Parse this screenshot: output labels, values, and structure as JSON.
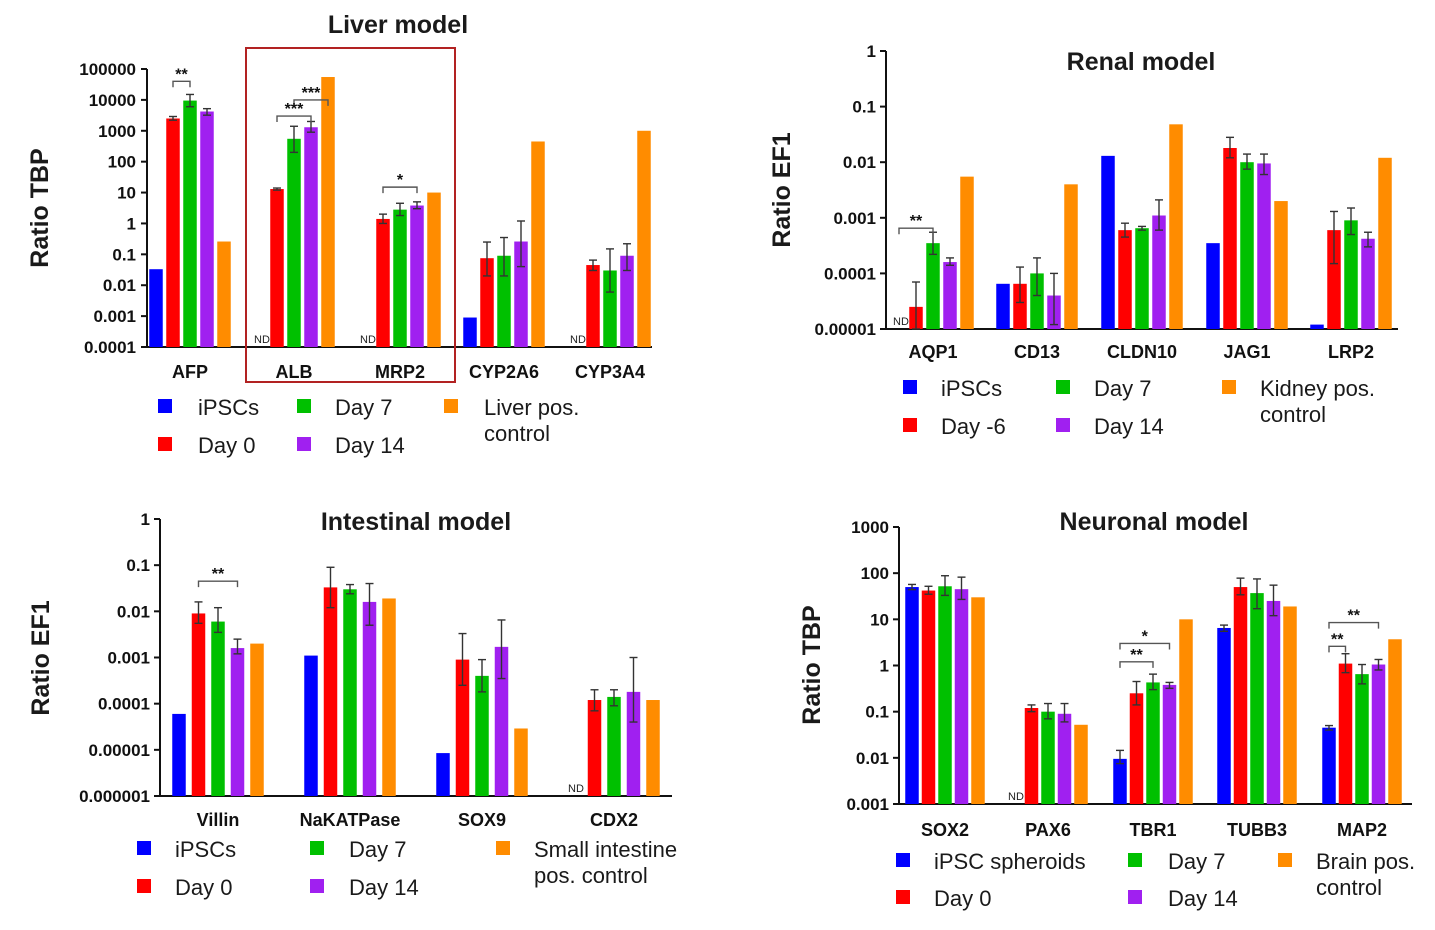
{
  "colors": {
    "blue": "#0000ff",
    "red": "#ff0000",
    "green": "#00c000",
    "purple": "#a020f0",
    "orange": "#ff8c00",
    "highlight": "#b22222"
  },
  "chart_data": [
    {
      "id": "liver",
      "type": "bar",
      "title": "Liver model",
      "ylabel": "Ratio TBP",
      "yscale": "log",
      "ylim": [
        0.0001,
        100000
      ],
      "yticks": [
        "100000",
        "10000",
        "1000",
        "100",
        "10",
        "1",
        "0.1",
        "0.01",
        "0.001",
        "0.0001"
      ],
      "categories": [
        "AFP",
        "ALB",
        "MRP2",
        "CYP2A6",
        "CYP3A4"
      ],
      "series": [
        {
          "name": "iPSCs",
          "color": "blue",
          "values": [
            0.033,
            null,
            null,
            0.0009,
            null
          ],
          "errors": [
            null,
            null,
            null,
            null,
            null
          ],
          "nd": [
            false,
            true,
            true,
            false,
            true
          ]
        },
        {
          "name": "Day 0",
          "color": "red",
          "values": [
            2500,
            13,
            1.4,
            0.075,
            0.045
          ],
          "errors": [
            [
              2200,
              2900
            ],
            [
              12,
              14
            ],
            [
              1.0,
              2.0
            ],
            [
              0.02,
              0.25
            ],
            [
              0.03,
              0.065
            ]
          ]
        },
        {
          "name": "Day 7",
          "color": "green",
          "values": [
            9500,
            550,
            2.8,
            0.09,
            0.03
          ],
          "errors": [
            [
              6000,
              15000
            ],
            [
              200,
              1400
            ],
            [
              1.8,
              4.5
            ],
            [
              0.02,
              0.35
            ],
            [
              0.006,
              0.15
            ]
          ]
        },
        {
          "name": "Day 14",
          "color": "purple",
          "values": [
            4200,
            1300,
            3.8,
            0.26,
            0.09
          ],
          "errors": [
            [
              3200,
              5200
            ],
            [
              900,
              2000
            ],
            [
              3.0,
              5.0
            ],
            [
              0.04,
              1.2
            ],
            [
              0.03,
              0.22
            ]
          ]
        },
        {
          "name": "Liver pos. control",
          "color": "orange",
          "values": [
            0.26,
            55000,
            10,
            450,
            1000
          ],
          "errors": [
            null,
            null,
            null,
            null,
            null
          ]
        }
      ],
      "significance": [
        {
          "label": "**",
          "category": 0,
          "from": 1,
          "to": 2,
          "at": 40000
        },
        {
          "label": "***",
          "category": 1,
          "from": 2,
          "to": 4,
          "at": 10000
        },
        {
          "label": "***",
          "category": 1,
          "from": 1,
          "to": 3,
          "at": 3000
        },
        {
          "label": "*",
          "category": 2,
          "from": 1,
          "to": 3,
          "at": 15
        }
      ],
      "highlight_categories": [
        1,
        2
      ],
      "legend": {
        "items": [
          {
            "label": "iPSCs",
            "color": "blue"
          },
          {
            "label": "Day 7",
            "color": "green"
          },
          {
            "label": "Liver pos.",
            "label2": "control",
            "color": "orange"
          },
          {
            "label": "Day 0",
            "color": "red"
          },
          {
            "label": "Day 14",
            "color": "purple"
          }
        ]
      },
      "nd_label": "ND"
    },
    {
      "id": "renal",
      "type": "bar",
      "title": "Renal model",
      "ylabel": "Ratio EF1",
      "yscale": "log",
      "ylim": [
        1e-05,
        1
      ],
      "yticks": [
        "1",
        "0.1",
        "0.01",
        "0.001",
        "0.0001",
        "0.00001"
      ],
      "categories": [
        "AQP1",
        "CD13",
        "CLDN10",
        "JAG1",
        "LRP2"
      ],
      "series": [
        {
          "name": "iPSCs",
          "color": "blue",
          "values": [
            null,
            6.5e-05,
            0.013,
            0.00035,
            1.2e-05
          ],
          "errors": [
            null,
            null,
            null,
            null,
            null
          ],
          "nd": [
            true,
            false,
            false,
            false,
            false
          ]
        },
        {
          "name": "Day -6",
          "color": "red",
          "values": [
            2.5e-05,
            6.5e-05,
            0.0006,
            0.018,
            0.0006
          ],
          "errors": [
            [
              1e-05,
              7e-05
            ],
            [
              3e-05,
              0.00013
            ],
            [
              0.00045,
              0.0008
            ],
            [
              0.012,
              0.028
            ],
            [
              0.00015,
              0.0013
            ]
          ]
        },
        {
          "name": "Day 7",
          "color": "green",
          "values": [
            0.00035,
            0.0001,
            0.00065,
            0.01,
            0.0009
          ],
          "errors": [
            [
              0.00022,
              0.00055
            ],
            [
              4e-05,
              0.00019
            ],
            [
              0.0006,
              0.0007
            ],
            [
              0.0075,
              0.014
            ],
            [
              0.0005,
              0.0015
            ]
          ]
        },
        {
          "name": "Day 14",
          "color": "purple",
          "values": [
            0.00016,
            4e-05,
            0.0011,
            0.0095,
            0.00042
          ],
          "errors": [
            [
              0.00014,
              0.00019
            ],
            [
              1.2e-05,
              0.0001
            ],
            [
              0.0006,
              0.0021
            ],
            [
              0.006,
              0.014
            ],
            [
              0.0003,
              0.00055
            ]
          ]
        },
        {
          "name": "Kidney pos. control",
          "color": "orange",
          "values": [
            0.0055,
            0.004,
            0.048,
            0.002,
            0.012
          ],
          "errors": [
            null,
            null,
            null,
            null,
            null
          ]
        }
      ],
      "significance": [
        {
          "label": "**",
          "category": 0,
          "from": 0,
          "to": 2,
          "at": 0.00065
        }
      ],
      "legend": {
        "items": [
          {
            "label": "iPSCs",
            "color": "blue"
          },
          {
            "label": "Day 7",
            "color": "green"
          },
          {
            "label": "Kidney pos.",
            "label2": "control",
            "color": "orange"
          },
          {
            "label": "Day -6",
            "color": "red"
          },
          {
            "label": "Day 14",
            "color": "purple"
          }
        ]
      },
      "nd_label": "ND"
    },
    {
      "id": "intestinal",
      "type": "bar",
      "title": "Intestinal model",
      "ylabel": "Ratio EF1",
      "yscale": "log",
      "ylim": [
        1e-06,
        1
      ],
      "yticks": [
        "1",
        "0.1",
        "0.01",
        "0.001",
        "0.0001",
        "0.00001",
        "0.000001"
      ],
      "categories": [
        "Villin",
        "NaKATPase",
        "SOX9",
        "CDX2"
      ],
      "series": [
        {
          "name": "iPSCs",
          "color": "blue",
          "values": [
            6e-05,
            0.0011,
            8.5e-06,
            null
          ],
          "errors": [
            null,
            null,
            null,
            null
          ],
          "nd": [
            false,
            false,
            false,
            true
          ]
        },
        {
          "name": "Day 0",
          "color": "red",
          "values": [
            0.009,
            0.033,
            0.0009,
            0.00012
          ],
          "errors": [
            [
              0.0055,
              0.016
            ],
            [
              0.012,
              0.09
            ],
            [
              0.00025,
              0.0033
            ],
            [
              7e-05,
              0.0002
            ]
          ]
        },
        {
          "name": "Day 7",
          "color": "green",
          "values": [
            0.006,
            0.03,
            0.0004,
            0.00014
          ],
          "errors": [
            [
              0.0035,
              0.012
            ],
            [
              0.024,
              0.038
            ],
            [
              0.00018,
              0.0009
            ],
            [
              9e-05,
              0.0002
            ]
          ]
        },
        {
          "name": "Day 14",
          "color": "purple",
          "values": [
            0.0016,
            0.016,
            0.0017,
            0.00018
          ],
          "errors": [
            [
              0.0012,
              0.0025
            ],
            [
              0.005,
              0.04
            ],
            [
              0.00035,
              0.0065
            ],
            [
              4e-05,
              0.001
            ]
          ]
        },
        {
          "name": "Small intestine pos. control",
          "color": "orange",
          "values": [
            0.002,
            0.019,
            2.9e-05,
            0.00012
          ],
          "errors": [
            null,
            null,
            null,
            null
          ]
        }
      ],
      "significance": [
        {
          "label": "**",
          "category": 0,
          "from": 1,
          "to": 3,
          "at": 0.045
        }
      ],
      "legend": {
        "items": [
          {
            "label": "iPSCs",
            "color": "blue"
          },
          {
            "label": "Day 7",
            "color": "green"
          },
          {
            "label": "Small intestine",
            "label2": "pos. control",
            "color": "orange"
          },
          {
            "label": "Day 0",
            "color": "red"
          },
          {
            "label": "Day 14",
            "color": "purple"
          }
        ]
      },
      "nd_label": "ND"
    },
    {
      "id": "neuronal",
      "type": "bar",
      "title": "Neuronal model",
      "ylabel": "Ratio TBP",
      "yscale": "log",
      "ylim": [
        0.001,
        1000
      ],
      "yticks": [
        "1000",
        "100",
        "10",
        "1",
        "0.1",
        "0.01",
        "0.001"
      ],
      "categories": [
        "SOX2",
        "PAX6",
        "TBR1",
        "TUBB3",
        "MAP2"
      ],
      "series": [
        {
          "name": "iPSC spheroids",
          "color": "blue",
          "values": [
            50,
            null,
            0.0095,
            6.5,
            0.045
          ],
          "errors": [
            [
              44,
              57
            ],
            null,
            [
              0.0075,
              0.0145
            ],
            [
              5.5,
              7.5
            ],
            [
              0.04,
              0.05
            ]
          ],
          "nd": [
            false,
            true,
            false,
            false,
            false
          ]
        },
        {
          "name": "Day 0",
          "color": "red",
          "values": [
            42,
            0.12,
            0.25,
            50,
            1.1
          ],
          "errors": [
            [
              35,
              52
            ],
            [
              0.1,
              0.14
            ],
            [
              0.14,
              0.45
            ],
            [
              34,
              78
            ],
            [
              0.7,
              1.8
            ]
          ]
        },
        {
          "name": "Day 7",
          "color": "green",
          "values": [
            52,
            0.1,
            0.43,
            37,
            0.65
          ],
          "errors": [
            [
              33,
              88
            ],
            [
              0.07,
              0.15
            ],
            [
              0.3,
              0.65
            ],
            [
              17,
              75
            ],
            [
              0.4,
              1.05
            ]
          ]
        },
        {
          "name": "Day 14",
          "color": "purple",
          "values": [
            45,
            0.09,
            0.38,
            25,
            1.05
          ],
          "errors": [
            [
              27,
              82
            ],
            [
              0.06,
              0.15
            ],
            [
              0.32,
              0.43
            ],
            [
              12,
              55
            ],
            [
              0.8,
              1.35
            ]
          ]
        },
        {
          "name": "Brain pos. control",
          "color": "orange",
          "values": [
            30,
            0.052,
            10,
            19,
            3.7
          ],
          "errors": [
            null,
            null,
            null,
            null,
            null
          ]
        }
      ],
      "significance": [
        {
          "label": "*",
          "category": 2,
          "from": 0,
          "to": 3,
          "at": 3.0
        },
        {
          "label": "**",
          "category": 2,
          "from": 0,
          "to": 2,
          "at": 1.2
        },
        {
          "label": "**",
          "category": 4,
          "from": 0,
          "to": 3,
          "at": 8.5
        },
        {
          "label": "**",
          "category": 4,
          "from": 0,
          "to": 1,
          "at": 2.6
        }
      ],
      "legend": {
        "items": [
          {
            "label": "iPSC spheroids",
            "color": "blue"
          },
          {
            "label": "Day 7",
            "color": "green"
          },
          {
            "label": "Brain pos.",
            "label2": "control",
            "color": "orange"
          },
          {
            "label": "Day 0",
            "color": "red"
          },
          {
            "label": "Day 14",
            "color": "purple"
          }
        ]
      },
      "nd_label": "ND"
    }
  ]
}
